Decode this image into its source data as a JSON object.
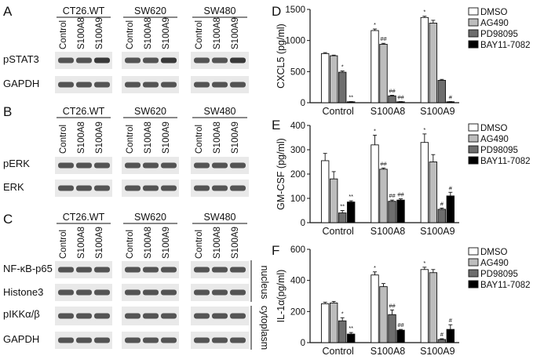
{
  "western_blots": [
    {
      "letter": "A",
      "groups": [
        "CT26.WT",
        "SW620",
        "SW480"
      ],
      "lanes": [
        "Control",
        "S100A8",
        "S100A9"
      ],
      "rows": [
        "pSTAT3",
        "GAPDH"
      ]
    },
    {
      "letter": "B",
      "groups": [
        "CT26.WT",
        "SW620",
        "SW480"
      ],
      "lanes": [
        "Control",
        "S100A8",
        "S100A9"
      ],
      "rows": [
        "pERK",
        "ERK"
      ]
    },
    {
      "letter": "C",
      "groups": [
        "CT26.WT",
        "SW620",
        "SW480"
      ],
      "lanes": [
        "Control",
        "S100A8",
        "S100A9"
      ],
      "rows": [
        "NF-κB-p65",
        "Histone3",
        "pIKKα/β",
        "GAPDH"
      ],
      "fractions": [
        "nucleus",
        "cytoplasm"
      ]
    }
  ],
  "chart_data": [
    {
      "letter": "D",
      "type": "bar",
      "ylabel": "CXCL5 (pg/ml)",
      "ylim": [
        0,
        1500
      ],
      "yticks": [
        0,
        500,
        1000,
        1500
      ],
      "categories": [
        "Control",
        "S100A8",
        "S100A9"
      ],
      "legend_position": "top-right",
      "series": [
        {
          "name": "DMSO",
          "color": "#ffffff",
          "values": [
            790,
            1160,
            1370
          ],
          "errors": [
            15,
            25,
            20
          ]
        },
        {
          "name": "AG490",
          "color": "#bdbdbd",
          "values": [
            755,
            940,
            1280
          ],
          "errors": [
            10,
            15,
            45
          ]
        },
        {
          "name": "PD98095",
          "color": "#6e6e6e",
          "values": [
            490,
            110,
            360
          ],
          "errors": [
            20,
            10,
            15
          ]
        },
        {
          "name": "BAY11-7082",
          "color": "#000000",
          "values": [
            15,
            15,
            15
          ],
          "errors": [
            3,
            3,
            3
          ]
        }
      ],
      "annotations": [
        [
          "",
          "",
          "*",
          "**"
        ],
        [
          "*",
          "##",
          "##",
          "##"
        ],
        [
          "*",
          "",
          "",
          "#"
        ]
      ]
    },
    {
      "letter": "E",
      "type": "bar",
      "ylabel": "GM-CSF (pg/ml)",
      "ylim": [
        0,
        400
      ],
      "yticks": [
        0,
        100,
        200,
        300,
        400
      ],
      "categories": [
        "Control",
        "S100A8",
        "S100A9"
      ],
      "legend_position": "top-right",
      "series": [
        {
          "name": "DMSO",
          "color": "#ffffff",
          "values": [
            255,
            320,
            330
          ],
          "errors": [
            30,
            40,
            35
          ]
        },
        {
          "name": "AG490",
          "color": "#bdbdbd",
          "values": [
            180,
            220,
            250
          ],
          "errors": [
            30,
            5,
            30
          ]
        },
        {
          "name": "PD98095",
          "color": "#6e6e6e",
          "values": [
            40,
            88,
            55
          ],
          "errors": [
            10,
            5,
            5
          ]
        },
        {
          "name": "BAY11-7082",
          "color": "#000000",
          "values": [
            85,
            93,
            110
          ],
          "errors": [
            5,
            5,
            15
          ]
        }
      ],
      "annotations": [
        [
          "",
          "",
          "**",
          "**"
        ],
        [
          "*",
          "##",
          "##",
          "##"
        ],
        [
          "*",
          "",
          "#",
          "#"
        ]
      ]
    },
    {
      "letter": "F",
      "type": "bar",
      "ylabel": "IL-1α(pg/ml)",
      "ylim": [
        0,
        600
      ],
      "yticks": [
        0,
        200,
        400,
        600
      ],
      "categories": [
        "Control",
        "S100A8",
        "S100A9"
      ],
      "legend_position": "top-right",
      "series": [
        {
          "name": "DMSO",
          "color": "#ffffff",
          "values": [
            250,
            435,
            470
          ],
          "errors": [
            10,
            20,
            15
          ]
        },
        {
          "name": "AG490",
          "color": "#bdbdbd",
          "values": [
            255,
            360,
            450
          ],
          "errors": [
            10,
            20,
            20
          ]
        },
        {
          "name": "PD98095",
          "color": "#6e6e6e",
          "values": [
            140,
            180,
            20
          ],
          "errors": [
            20,
            30,
            5
          ]
        },
        {
          "name": "BAY11-7082",
          "color": "#000000",
          "values": [
            55,
            80,
            85
          ],
          "errors": [
            10,
            5,
            30
          ]
        }
      ],
      "annotations": [
        [
          "",
          "",
          "*",
          "**"
        ],
        [
          "*",
          "",
          "##",
          "##"
        ],
        [
          "*",
          "",
          "#",
          "#"
        ]
      ]
    }
  ]
}
